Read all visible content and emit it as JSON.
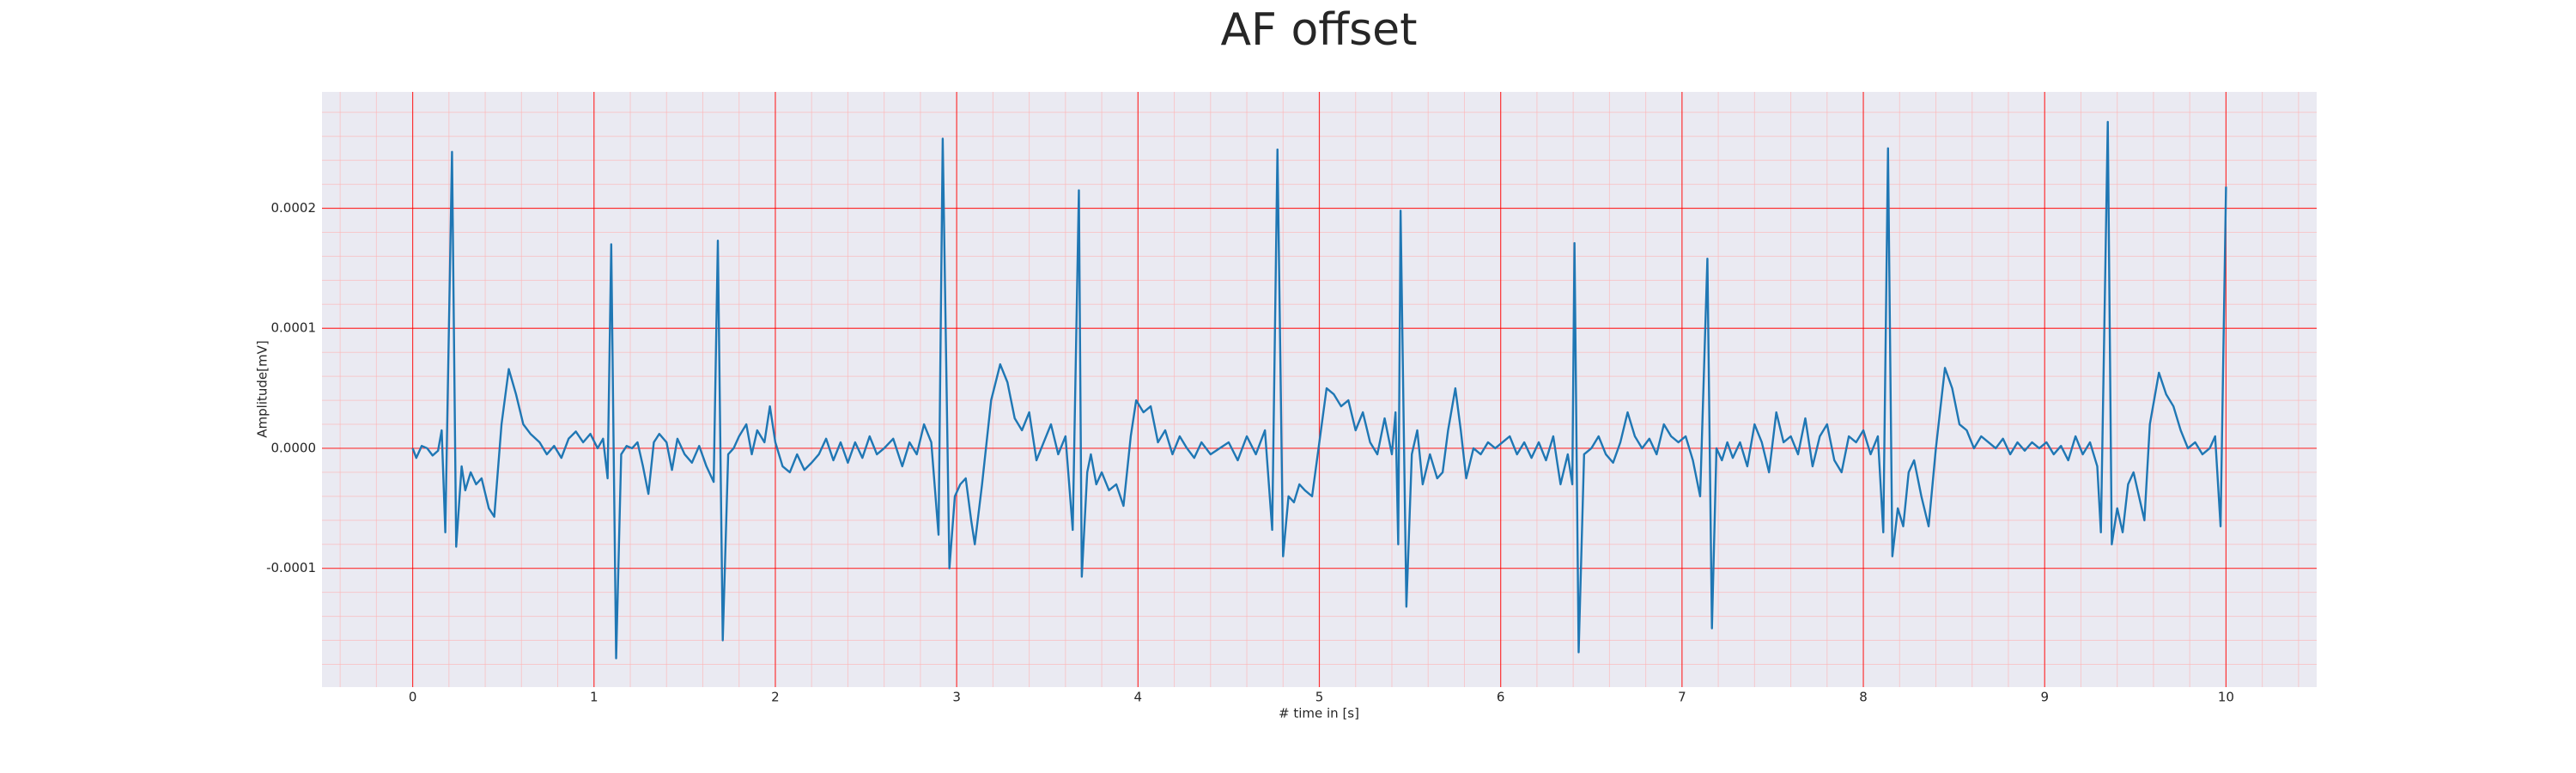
{
  "chart_data": {
    "type": "line",
    "title": "AF offset",
    "x_label": "# time in [s]",
    "y_label": "Amplitude[mV]",
    "color": "#1f77b4",
    "background": "#eaeaf2",
    "grid": true,
    "grid_color": "#ff0000",
    "minor_grid": true,
    "minor_grid_color": "#ffb3b3",
    "minor_grid_divisions": 5,
    "xlim": [
      -0.5,
      10.5
    ],
    "xticks": [
      0,
      1,
      2,
      3,
      4,
      5,
      6,
      7,
      8,
      9,
      10
    ],
    "ylim": [
      -0.000199,
      0.000297
    ],
    "yticks": [
      -0.0001,
      {
        "value": 0,
        "label": "0.0000"
      },
      0.0001,
      0.0002
    ],
    "x": [
      0,
      0.02,
      0.05,
      0.08,
      0.11,
      0.14,
      0.16,
      0.18,
      0.217,
      0.24,
      0.27,
      0.29,
      0.32,
      0.35,
      0.38,
      0.42,
      0.45,
      0.49,
      0.53,
      0.57,
      0.61,
      0.65,
      0.7,
      0.74,
      0.78,
      0.82,
      0.86,
      0.9,
      0.94,
      0.98,
      1.02,
      1.05,
      1.075,
      1.095,
      1.122,
      1.15,
      1.18,
      1.21,
      1.24,
      1.27,
      1.3,
      1.33,
      1.36,
      1.4,
      1.43,
      1.46,
      1.5,
      1.54,
      1.58,
      1.62,
      1.66,
      1.683,
      1.71,
      1.74,
      1.77,
      1.8,
      1.84,
      1.87,
      1.9,
      1.94,
      1.97,
      2,
      2.04,
      2.08,
      2.12,
      2.16,
      2.2,
      2.24,
      2.28,
      2.32,
      2.36,
      2.4,
      2.44,
      2.48,
      2.52,
      2.56,
      2.6,
      2.65,
      2.7,
      2.74,
      2.78,
      2.82,
      2.86,
      2.9,
      2.923,
      2.96,
      2.99,
      3.02,
      3.05,
      3.08,
      3.1,
      3.14,
      3.19,
      3.24,
      3.28,
      3.32,
      3.36,
      3.4,
      3.44,
      3.48,
      3.52,
      3.56,
      3.6,
      3.64,
      3.674,
      3.69,
      3.72,
      3.74,
      3.77,
      3.8,
      3.84,
      3.88,
      3.92,
      3.96,
      3.99,
      4.03,
      4.07,
      4.11,
      4.15,
      4.19,
      4.23,
      4.27,
      4.31,
      4.35,
      4.4,
      4.45,
      4.5,
      4.55,
      4.6,
      4.65,
      4.7,
      4.74,
      4.769,
      4.8,
      4.83,
      4.86,
      4.89,
      4.92,
      4.96,
      5,
      5.04,
      5.08,
      5.12,
      5.16,
      5.2,
      5.24,
      5.28,
      5.32,
      5.36,
      5.4,
      5.42,
      5.435,
      5.448,
      5.48,
      5.51,
      5.54,
      5.57,
      5.61,
      5.65,
      5.68,
      5.71,
      5.75,
      5.78,
      5.81,
      5.85,
      5.89,
      5.93,
      5.97,
      6.01,
      6.05,
      6.09,
      6.13,
      6.17,
      6.21,
      6.25,
      6.29,
      6.33,
      6.37,
      6.395,
      6.407,
      6.43,
      6.46,
      6.5,
      6.54,
      6.58,
      6.62,
      6.66,
      6.7,
      6.74,
      6.78,
      6.82,
      6.86,
      6.9,
      6.94,
      6.98,
      7.02,
      7.06,
      7.1,
      7.14,
      7.165,
      7.19,
      7.22,
      7.25,
      7.28,
      7.32,
      7.36,
      7.4,
      7.44,
      7.48,
      7.52,
      7.56,
      7.6,
      7.64,
      7.68,
      7.72,
      7.76,
      7.8,
      7.84,
      7.88,
      7.92,
      7.96,
      8,
      8.04,
      8.08,
      8.11,
      8.136,
      8.16,
      8.19,
      8.22,
      8.25,
      8.28,
      8.32,
      8.36,
      8.4,
      8.45,
      8.49,
      8.53,
      8.57,
      8.61,
      8.65,
      8.69,
      8.73,
      8.77,
      8.81,
      8.85,
      8.89,
      8.93,
      8.97,
      9.01,
      9.05,
      9.09,
      9.13,
      9.17,
      9.21,
      9.25,
      9.29,
      9.31,
      9.348,
      9.37,
      9.4,
      9.43,
      9.46,
      9.49,
      9.52,
      9.55,
      9.58,
      9.63,
      9.67,
      9.71,
      9.75,
      9.79,
      9.83,
      9.87,
      9.91,
      9.94,
      9.97,
      10
    ],
    "values": [
      0,
      -8e-06,
      2e-06,
      0,
      -6e-06,
      -2e-06,
      1.5e-05,
      -7e-05,
      0.000247,
      -8.2e-05,
      -1.5e-05,
      -3.5e-05,
      -2e-05,
      -3e-05,
      -2.5e-05,
      -5e-05,
      -5.7e-05,
      2e-05,
      6.6e-05,
      4.5e-05,
      2e-05,
      1.2e-05,
      5e-06,
      -5e-06,
      2e-06,
      -8e-06,
      8e-06,
      1.4e-05,
      5e-06,
      1.2e-05,
      0,
      8e-06,
      -2.5e-05,
      0.00017,
      -0.000175,
      -5e-06,
      2e-06,
      0,
      5e-06,
      -1.5e-05,
      -3.8e-05,
      5e-06,
      1.2e-05,
      5e-06,
      -1.8e-05,
      8e-06,
      -5e-06,
      -1.2e-05,
      2e-06,
      -1.5e-05,
      -2.8e-05,
      0.000173,
      -0.00016,
      -5e-06,
      0,
      1e-05,
      2e-05,
      -5e-06,
      1.5e-05,
      5e-06,
      3.5e-05,
      5e-06,
      -1.5e-05,
      -2e-05,
      -5e-06,
      -1.8e-05,
      -1.2e-05,
      -5e-06,
      8e-06,
      -1e-05,
      5e-06,
      -1.2e-05,
      5e-06,
      -8e-06,
      1e-05,
      -5e-06,
      0,
      8e-06,
      -1.5e-05,
      5e-06,
      -5e-06,
      2e-05,
      5e-06,
      -7.2e-05,
      0.000258,
      -0.0001,
      -4e-05,
      -3e-05,
      -2.5e-05,
      -6e-05,
      -8e-05,
      -3e-05,
      4e-05,
      7e-05,
      5.5e-05,
      2.5e-05,
      1.5e-05,
      3e-05,
      -1e-05,
      5e-06,
      2e-05,
      -5e-06,
      1e-05,
      -6.8e-05,
      0.000215,
      -0.000107,
      -2e-05,
      -5e-06,
      -3e-05,
      -2e-05,
      -3.5e-05,
      -3e-05,
      -4.8e-05,
      1e-05,
      4e-05,
      3e-05,
      3.5e-05,
      5e-06,
      1.5e-05,
      -5e-06,
      1e-05,
      0,
      -8e-06,
      5e-06,
      -5e-06,
      0,
      5e-06,
      -1e-05,
      1e-05,
      -5e-06,
      1.5e-05,
      -6.8e-05,
      0.000249,
      -9e-05,
      -4e-05,
      -4.5e-05,
      -3e-05,
      -3.5e-05,
      -4e-05,
      5e-06,
      5e-05,
      4.5e-05,
      3.5e-05,
      4e-05,
      1.5e-05,
      3e-05,
      5e-06,
      -5e-06,
      2.5e-05,
      -5e-06,
      3e-05,
      -8e-05,
      0.000198,
      -0.000132,
      -5e-06,
      1.5e-05,
      -3e-05,
      -5e-06,
      -2.5e-05,
      -2e-05,
      1.5e-05,
      5e-05,
      1.5e-05,
      -2.5e-05,
      0,
      -5e-06,
      5e-06,
      0,
      5e-06,
      1e-05,
      -5e-06,
      5e-06,
      -8e-06,
      5e-06,
      -1e-05,
      1e-05,
      -3e-05,
      -5e-06,
      -3e-05,
      0.000171,
      -0.00017,
      -5e-06,
      0,
      1e-05,
      -5e-06,
      -1.2e-05,
      5e-06,
      3e-05,
      1e-05,
      0,
      8e-06,
      -5e-06,
      2e-05,
      1e-05,
      5e-06,
      1e-05,
      -1e-05,
      -4e-05,
      0.000158,
      -0.00015,
      0,
      -1e-05,
      5e-06,
      -8e-06,
      5e-06,
      -1.5e-05,
      2e-05,
      5e-06,
      -2e-05,
      3e-05,
      5e-06,
      1e-05,
      -5e-06,
      2.5e-05,
      -1.5e-05,
      1e-05,
      2e-05,
      -1e-05,
      -2e-05,
      1e-05,
      5e-06,
      1.5e-05,
      -5e-06,
      1e-05,
      -7e-05,
      0.00025,
      -9e-05,
      -5e-05,
      -6.5e-05,
      -2e-05,
      -1e-05,
      -4e-05,
      -6.5e-05,
      0,
      6.7e-05,
      5e-05,
      2e-05,
      1.5e-05,
      0,
      1e-05,
      5e-06,
      0,
      8e-06,
      -5e-06,
      5e-06,
      -2e-06,
      5e-06,
      0,
      5e-06,
      -5e-06,
      2e-06,
      -1e-05,
      1e-05,
      -5e-06,
      5e-06,
      -1.5e-05,
      -7e-05,
      0.000272,
      -8e-05,
      -5e-05,
      -7e-05,
      -3e-05,
      -2e-05,
      -4e-05,
      -6e-05,
      2e-05,
      6.3e-05,
      4.5e-05,
      3.5e-05,
      1.5e-05,
      0,
      5e-06,
      -5e-06,
      0,
      1e-05,
      -6.5e-05,
      0.000218
    ]
  }
}
